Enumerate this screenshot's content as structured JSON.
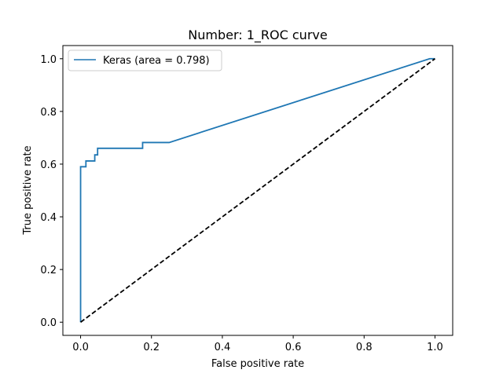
{
  "chart_data": {
    "type": "line",
    "title": "Number:  1_ROC curve",
    "xlabel": "False positive rate",
    "ylabel": "True positive rate",
    "xlim": [
      -0.05,
      1.05
    ],
    "ylim": [
      -0.05,
      1.05
    ],
    "xticks": [
      0.0,
      0.2,
      0.4,
      0.6,
      0.8,
      1.0
    ],
    "yticks": [
      0.0,
      0.2,
      0.4,
      0.6,
      0.8,
      1.0
    ],
    "xtick_labels": [
      "0.0",
      "0.2",
      "0.4",
      "0.6",
      "0.8",
      "1.0"
    ],
    "ytick_labels": [
      "0.0",
      "0.2",
      "0.4",
      "0.6",
      "0.8",
      "1.0"
    ],
    "grid": false,
    "legend_position": "top-left",
    "series": [
      {
        "name": "Keras (area = 0.798)",
        "color": "#1f77b4",
        "style": "solid",
        "x": [
          0.0,
          0.0,
          0.015,
          0.015,
          0.04,
          0.04,
          0.048,
          0.048,
          0.175,
          0.175,
          0.25,
          0.985,
          1.0
        ],
        "y": [
          0.0,
          0.59,
          0.59,
          0.612,
          0.612,
          0.635,
          0.635,
          0.66,
          0.66,
          0.682,
          0.682,
          1.0,
          1.0
        ]
      },
      {
        "name": "",
        "color": "#000000",
        "style": "dashed",
        "x": [
          0.0,
          1.0
        ],
        "y": [
          0.0,
          1.0
        ]
      }
    ]
  }
}
